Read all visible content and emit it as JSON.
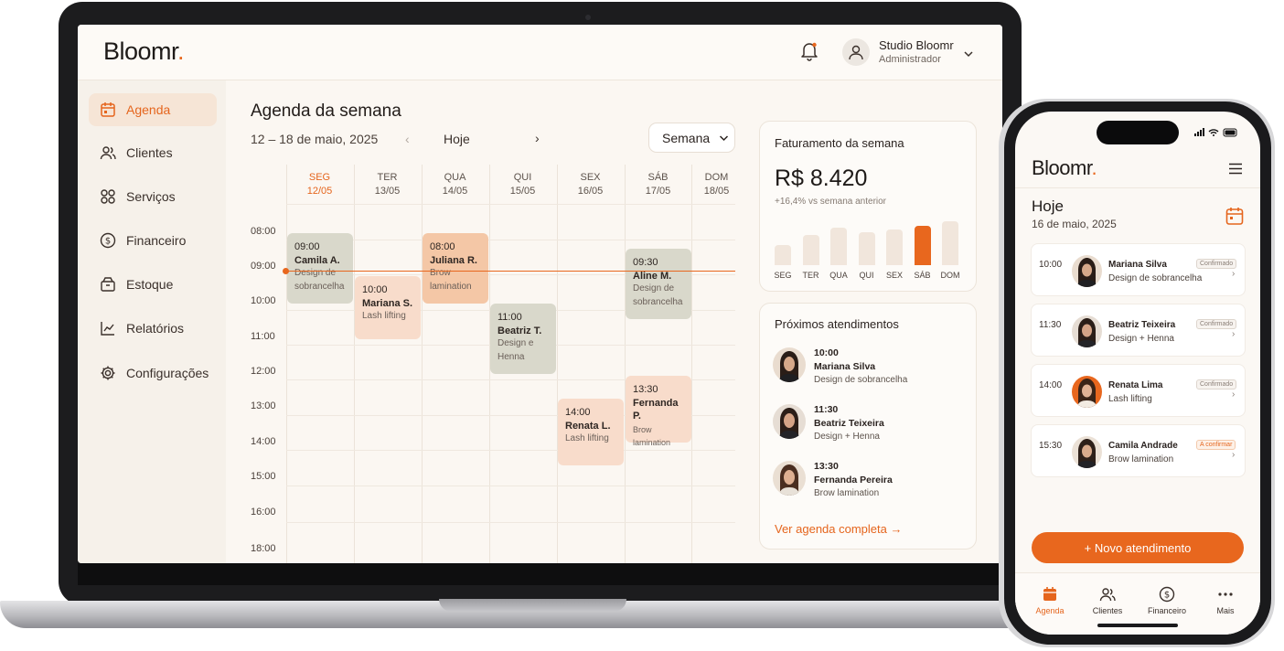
{
  "app": {
    "name": "Bloomr",
    "dot": "."
  },
  "colors": {
    "accent": "#e8671e",
    "event_grey": "#d9d8cb",
    "event_peach": "#f4c7a6",
    "event_light": "#f8dccb"
  },
  "header": {
    "user_name": "Studio Bloomr",
    "user_role": "Administrador"
  },
  "sidebar": {
    "items": [
      {
        "label": "Agenda",
        "icon": "calendar-icon",
        "active": true
      },
      {
        "label": "Clientes",
        "icon": "users-icon"
      },
      {
        "label": "Serviços",
        "icon": "grid-icon"
      },
      {
        "label": "Financeiro",
        "icon": "dollar-icon"
      },
      {
        "label": "Estoque",
        "icon": "box-icon"
      },
      {
        "label": "Relatórios",
        "icon": "chart-icon"
      },
      {
        "label": "Configurações",
        "icon": "gear-icon"
      }
    ]
  },
  "agenda": {
    "title": "Agenda da semana",
    "date_range": "12 – 18 de maio, 2025",
    "today_label": "Hoje",
    "prev": "‹",
    "next": "›",
    "view_label": "Semana",
    "days": [
      {
        "name": "SEG",
        "date": "12/05"
      },
      {
        "name": "TER",
        "date": "13/05"
      },
      {
        "name": "QUA",
        "date": "14/05"
      },
      {
        "name": "QUI",
        "date": "15/05"
      },
      {
        "name": "SEX",
        "date": "16/05"
      },
      {
        "name": "SÁB",
        "date": "17/05"
      },
      {
        "name": "DOM",
        "date": "18/05"
      }
    ],
    "hours": [
      "08:00",
      "09:00",
      "10:00",
      "11:00",
      "12:00",
      "13:00",
      "14:00",
      "15:00",
      "16:00",
      "18:00"
    ],
    "events": [
      {
        "time": "09:00",
        "name": "Camila A.",
        "service": "Design de sobrancelha"
      },
      {
        "time": "10:00",
        "name": "Mariana S.",
        "service": "Lash lifting"
      },
      {
        "time": "08:00",
        "name": "Juliana R.",
        "service": "Brow lamination"
      },
      {
        "time": "11:00",
        "name": "Beatriz T.",
        "service": "Design e Henna"
      },
      {
        "time": "14:00",
        "name": "Renata L.",
        "service": "Lash lifting"
      },
      {
        "time": "09:30",
        "name": "Aline M.",
        "service": "Design de sobrancelha"
      },
      {
        "time": "13:30",
        "name": "Fernanda P.",
        "service": "Brow lamination"
      }
    ]
  },
  "revenue": {
    "title": "Faturamento da semana",
    "value": "R$ 8.420",
    "delta": "+16,4% vs semana anterior",
    "bars": [
      {
        "label": "SEG",
        "level": 0.46
      },
      {
        "label": "TER",
        "level": 0.68
      },
      {
        "label": "QUA",
        "level": 0.86
      },
      {
        "label": "QUI",
        "level": 0.76
      },
      {
        "label": "SEX",
        "level": 0.82
      },
      {
        "label": "SÁB",
        "level": 0.9
      },
      {
        "label": "DOM",
        "level": 1.0
      }
    ]
  },
  "upcoming": {
    "title": "Próximos atendimentos",
    "items": [
      {
        "time": "10:00",
        "name": "Mariana Silva",
        "service": "Design de sobrancelha"
      },
      {
        "time": "11:30",
        "name": "Beatriz Teixeira",
        "service": "Design + Henna"
      },
      {
        "time": "13:30",
        "name": "Fernanda Pereira",
        "service": "Brow lamination"
      }
    ],
    "see_all": "Ver agenda completa →"
  },
  "phone": {
    "today": "Hoje",
    "date": "16 de maio, 2025",
    "items": [
      {
        "time": "10:00",
        "name": "Mariana Silva",
        "service": "Design de sobrancelha",
        "status": "Confirmado"
      },
      {
        "time": "11:30",
        "name": "Beatriz Teixeira",
        "service": "Design + Henna",
        "status": "Confirmado"
      },
      {
        "time": "14:00",
        "name": "Renata Lima",
        "service": "Lash lifting",
        "status": "Confirmado"
      },
      {
        "time": "15:30",
        "name": "Camila Andrade",
        "service": "Brow lamination",
        "status": "A confirmar"
      }
    ],
    "new_button": "+ Novo atendimento",
    "tabs": [
      {
        "label": "Agenda",
        "active": true
      },
      {
        "label": "Clientes"
      },
      {
        "label": "Financeiro"
      },
      {
        "label": "Mais"
      }
    ]
  }
}
